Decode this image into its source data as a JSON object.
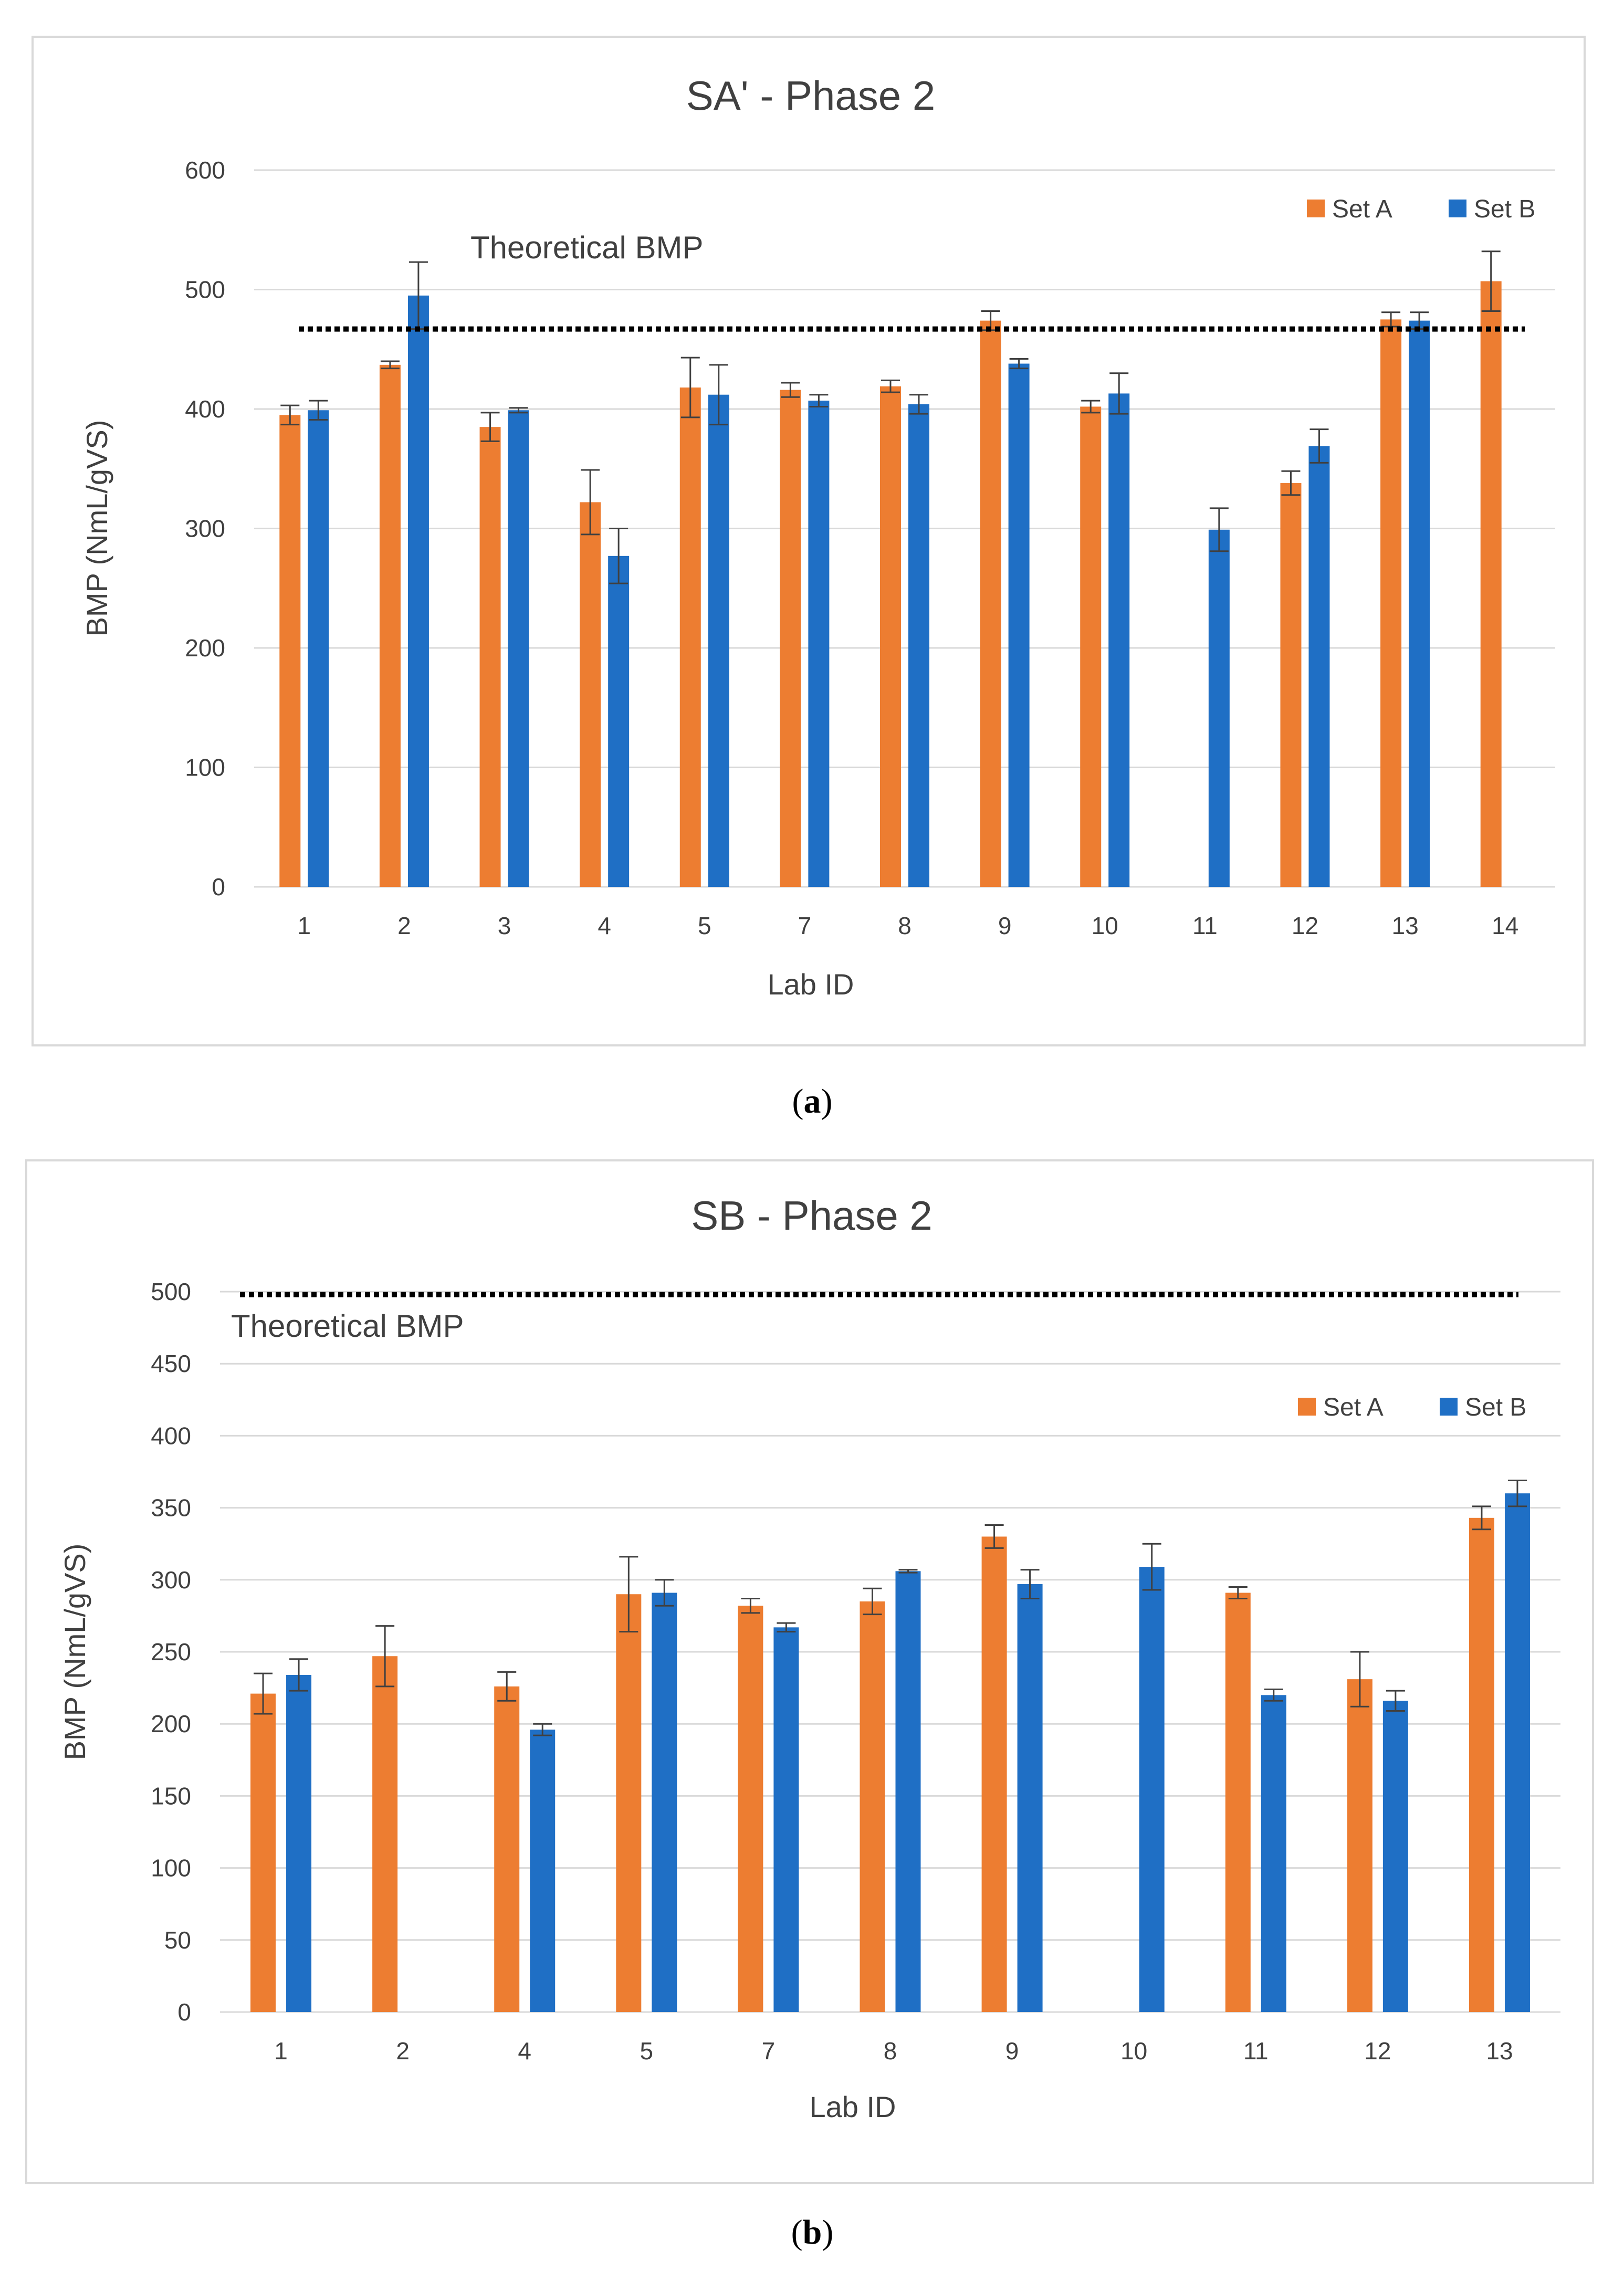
{
  "chart_data": [
    {
      "type": "bar",
      "title": "SA' - Phase 2",
      "xlabel": "Lab ID",
      "ylabel": "BMP (NmL/gVS)",
      "ylim": [
        0,
        600
      ],
      "yticks": [
        0,
        100,
        200,
        300,
        400,
        500,
        600
      ],
      "grid": true,
      "legend_position": "top-right",
      "categories": [
        "1",
        "2",
        "3",
        "4",
        "5",
        "7",
        "8",
        "9",
        "10",
        "11",
        "12",
        "13",
        "14"
      ],
      "series": [
        {
          "name": "Set A",
          "color": "#ED7D31",
          "values": [
            395,
            437,
            385,
            322,
            418,
            416,
            419,
            474,
            402,
            null,
            338,
            475,
            507
          ],
          "errors": [
            8,
            3,
            12,
            27,
            25,
            6,
            5,
            8,
            5,
            null,
            10,
            6,
            25
          ]
        },
        {
          "name": "Set B",
          "color": "#1F6FC5",
          "values": [
            399,
            495,
            399,
            277,
            412,
            407,
            404,
            438,
            413,
            299,
            369,
            474,
            null
          ],
          "errors": [
            8,
            28,
            2,
            23,
            25,
            5,
            8,
            4,
            17,
            18,
            14,
            7,
            null
          ]
        }
      ],
      "reference_line": {
        "label": "Theoretical BMP",
        "value": 467
      }
    },
    {
      "type": "bar",
      "title": "SB - Phase 2",
      "xlabel": "Lab ID",
      "ylabel": "BMP (NmL/gVS)",
      "ylim": [
        0,
        500
      ],
      "yticks": [
        0,
        50,
        100,
        150,
        200,
        250,
        300,
        350,
        400,
        450,
        500
      ],
      "grid": true,
      "legend_position": "top-right",
      "categories": [
        "1",
        "2",
        "4",
        "5",
        "7",
        "8",
        "9",
        "10",
        "11",
        "12",
        "13"
      ],
      "series": [
        {
          "name": "Set A",
          "color": "#ED7D31",
          "values": [
            221,
            247,
            226,
            290,
            282,
            285,
            330,
            null,
            291,
            231,
            343
          ],
          "errors": [
            14,
            21,
            10,
            26,
            5,
            9,
            8,
            null,
            4,
            19,
            8
          ]
        },
        {
          "name": "Set B",
          "color": "#1F6FC5",
          "values": [
            234,
            null,
            196,
            291,
            267,
            306,
            297,
            309,
            220,
            216,
            360
          ],
          "errors": [
            11,
            null,
            4,
            9,
            3,
            1,
            10,
            16,
            4,
            7,
            9
          ]
        }
      ],
      "reference_line": {
        "label": "Theoretical BMP",
        "value": 498
      }
    }
  ],
  "captions": [
    {
      "open": "(",
      "letter": "a",
      "close": ")"
    },
    {
      "open": "(",
      "letter": "b",
      "close": ")"
    }
  ]
}
